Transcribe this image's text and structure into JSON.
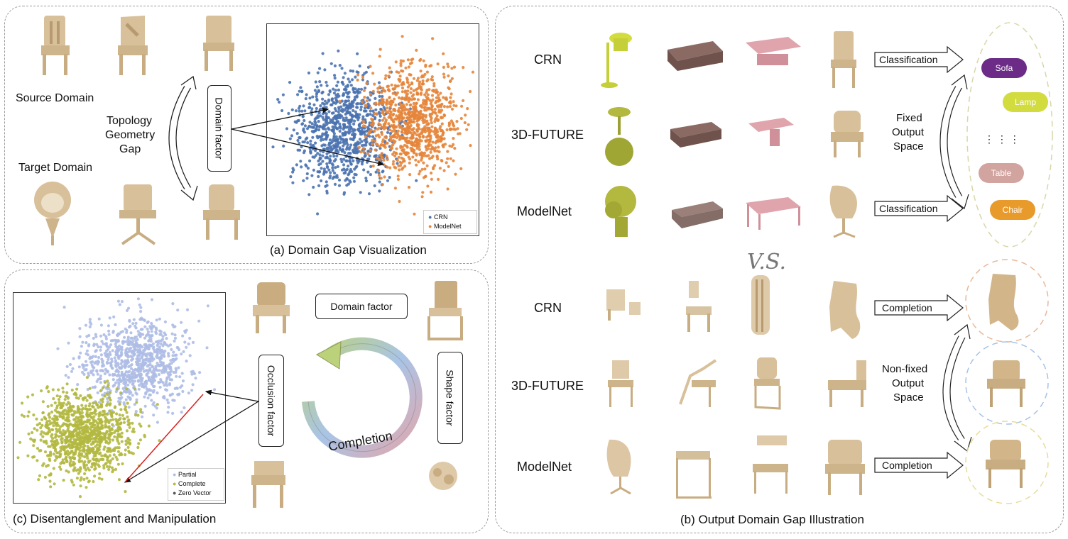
{
  "panel_a": {
    "caption": "(a) Domain Gap Visualization",
    "source_label": "Source Domain",
    "target_label": "Target Domain",
    "gap_line1": "Topology",
    "gap_line2": "Geometry",
    "gap_line3": "Gap",
    "domain_factor": "Domain factor",
    "legend": [
      "CRN",
      "ModelNet"
    ]
  },
  "panel_b": {
    "caption": "(b) Output Domain Gap Illustration",
    "rows_top": [
      "CRN",
      "3D-FUTURE",
      "ModelNet"
    ],
    "rows_bottom": [
      "CRN",
      "3D-FUTURE",
      "ModelNet"
    ],
    "classification": "Classification",
    "completion": "Completion",
    "fixed": [
      "Fixed",
      "Output",
      "Space"
    ],
    "nonfixed": [
      "Non-fixed",
      "Output",
      "Space"
    ],
    "vs": "V.S.",
    "classes": [
      "Sofa",
      "Lamp",
      "Table",
      "Chair"
    ],
    "dots": "⋮     ⋮     ⋮"
  },
  "panel_c": {
    "caption": "(c) Disentanglement and Manipulation",
    "domain_factor": "Domain factor",
    "occlusion_factor": "Occlusion factor",
    "shape_factor": "Shape factor",
    "completion": "Completion",
    "legend": [
      "Partial",
      "Complete",
      "Zero Vector"
    ]
  },
  "colors": {
    "crn": "#4a72b0",
    "modelnet": "#e5853a",
    "partial": "#aebde6",
    "complete": "#b3b83f",
    "wood": "#d8c09a",
    "sofa_pill": "#6b2b86",
    "lamp_pill": "#d2dc3f",
    "table_pill": "#d2a4a0",
    "chair_pill": "#e89a2b"
  }
}
